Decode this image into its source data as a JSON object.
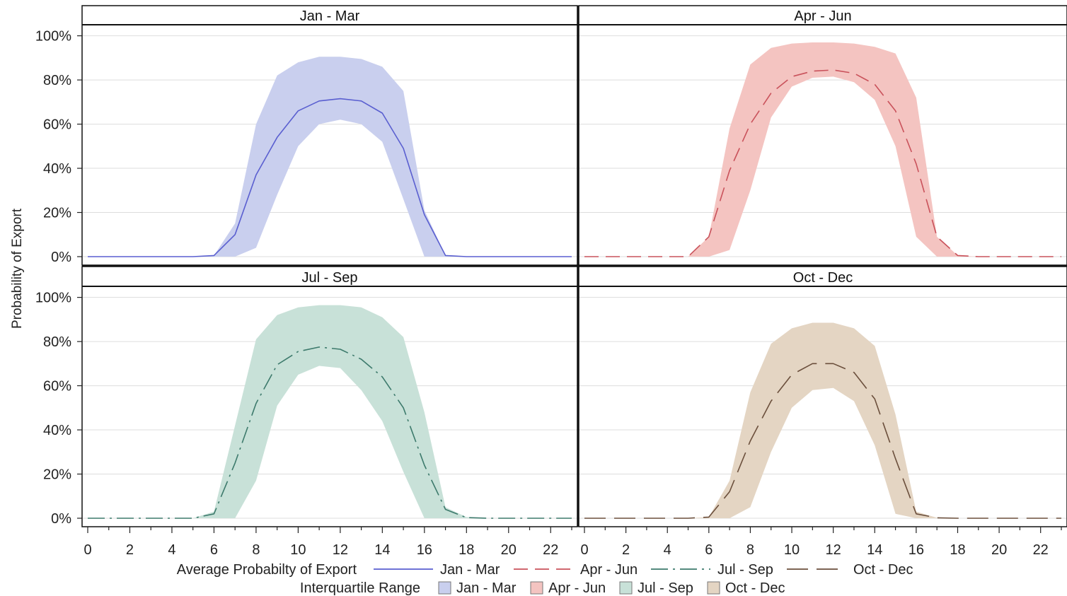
{
  "chart_data": {
    "type": "line",
    "ylabel": "Probability of Export",
    "y_ticks": [
      "0%",
      "20%",
      "40%",
      "60%",
      "80%",
      "100%"
    ],
    "x_ticks": [
      "0",
      "2",
      "4",
      "6",
      "8",
      "10",
      "12",
      "14",
      "16",
      "18",
      "20",
      "22"
    ],
    "x_range": [
      0,
      23
    ],
    "y_range": [
      0,
      1.05
    ],
    "grid": "horizontal",
    "legend_position": "bottom",
    "legend": {
      "line_title": "Average Probabilty of Export",
      "band_title": "Interquartile Range",
      "entries": [
        "Jan - Mar",
        "Apr - Jun",
        "Jul - Sep",
        "Oct - Dec"
      ]
    },
    "x": [
      0,
      1,
      2,
      3,
      4,
      5,
      6,
      7,
      8,
      9,
      10,
      11,
      12,
      13,
      14,
      15,
      16,
      17,
      18,
      19,
      20,
      21,
      22,
      23
    ],
    "panels": [
      {
        "title": "Jan - Mar",
        "line_color": "#5a5fd0",
        "band_color": "#c9cfee",
        "dash": "",
        "mean": [
          0,
          0,
          0,
          0,
          0,
          0,
          0.005,
          0.1,
          0.37,
          0.54,
          0.66,
          0.705,
          0.715,
          0.705,
          0.65,
          0.49,
          0.19,
          0.005,
          0,
          0,
          0,
          0,
          0,
          0
        ],
        "lower": [
          0,
          0,
          0,
          0,
          0,
          0,
          0,
          0,
          0.04,
          0.28,
          0.5,
          0.6,
          0.62,
          0.6,
          0.52,
          0.26,
          0,
          0,
          0,
          0,
          0,
          0,
          0,
          0
        ],
        "upper": [
          0,
          0,
          0,
          0,
          0,
          0,
          0.005,
          0.15,
          0.6,
          0.82,
          0.88,
          0.905,
          0.905,
          0.895,
          0.86,
          0.75,
          0.21,
          0.005,
          0,
          0,
          0,
          0,
          0,
          0
        ]
      },
      {
        "title": "Apr - Jun",
        "line_color": "#c9525b",
        "band_color": "#f4c4c1",
        "dash": "20,10",
        "mean": [
          0,
          0,
          0,
          0,
          0,
          0,
          0.09,
          0.39,
          0.6,
          0.74,
          0.815,
          0.84,
          0.845,
          0.83,
          0.78,
          0.66,
          0.42,
          0.09,
          0.005,
          0,
          0,
          0,
          0,
          0
        ],
        "lower": [
          0,
          0,
          0,
          0,
          0,
          0,
          0,
          0.03,
          0.3,
          0.63,
          0.77,
          0.81,
          0.815,
          0.79,
          0.71,
          0.5,
          0.09,
          0,
          0,
          0,
          0,
          0,
          0,
          0
        ],
        "upper": [
          0,
          0,
          0,
          0,
          0,
          0,
          0.09,
          0.58,
          0.87,
          0.945,
          0.965,
          0.97,
          0.97,
          0.965,
          0.95,
          0.92,
          0.72,
          0.09,
          0.005,
          0,
          0,
          0,
          0,
          0
        ]
      },
      {
        "title": "Jul - Sep",
        "line_color": "#3d7a6c",
        "band_color": "#c8e1d8",
        "dash": "24,7,3,7",
        "mean": [
          0,
          0,
          0,
          0,
          0,
          0,
          0.02,
          0.25,
          0.52,
          0.695,
          0.755,
          0.775,
          0.765,
          0.72,
          0.64,
          0.5,
          0.24,
          0.04,
          0.003,
          0,
          0,
          0,
          0,
          0
        ],
        "lower": [
          0,
          0,
          0,
          0,
          0,
          0,
          0,
          0,
          0.17,
          0.51,
          0.65,
          0.69,
          0.68,
          0.58,
          0.44,
          0.21,
          0,
          0,
          0,
          0,
          0,
          0,
          0,
          0
        ],
        "upper": [
          0,
          0,
          0,
          0,
          0,
          0,
          0.03,
          0.42,
          0.81,
          0.92,
          0.955,
          0.965,
          0.965,
          0.955,
          0.91,
          0.82,
          0.48,
          0.05,
          0.005,
          0,
          0,
          0,
          0,
          0
        ]
      },
      {
        "title": "Oct - Dec",
        "line_color": "#6b4f3c",
        "band_color": "#e4d5c3",
        "dash": "30,12",
        "mean": [
          0,
          0,
          0,
          0,
          0,
          0,
          0.005,
          0.12,
          0.35,
          0.53,
          0.65,
          0.7,
          0.7,
          0.66,
          0.54,
          0.27,
          0.02,
          0.002,
          0,
          0,
          0,
          0,
          0,
          0
        ],
        "lower": [
          0,
          0,
          0,
          0,
          0,
          0,
          0,
          0,
          0.05,
          0.3,
          0.5,
          0.58,
          0.59,
          0.53,
          0.33,
          0.02,
          0,
          0,
          0,
          0,
          0,
          0,
          0,
          0
        ],
        "upper": [
          0,
          0,
          0,
          0,
          0,
          0,
          0.005,
          0.17,
          0.57,
          0.79,
          0.86,
          0.885,
          0.885,
          0.86,
          0.78,
          0.47,
          0.03,
          0.002,
          0,
          0,
          0,
          0,
          0,
          0
        ]
      }
    ]
  }
}
